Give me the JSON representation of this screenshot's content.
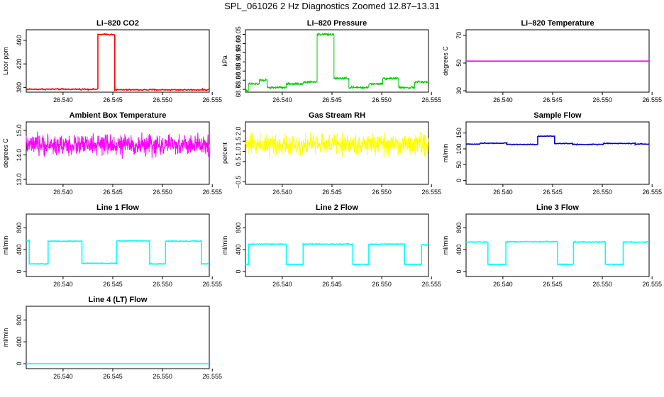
{
  "page": {
    "title": "SPL_061026  2 Hz Diagnostics Zoomed 12.87–13.31"
  },
  "chart_data": [
    {
      "type": "line",
      "title": "Li–820 CO2",
      "xlabel": "",
      "ylabel": "Licor ppm",
      "color": "#ff0000",
      "x_ticks": [
        "26.540",
        "26.545",
        "26.550",
        "26.555"
      ],
      "y_ticks": [
        "380",
        "420",
        "460"
      ],
      "xlim": [
        26.5363,
        26.5547
      ],
      "ylim": [
        372,
        478
      ],
      "noise": 1.0,
      "series": [
        {
          "segments": [
            {
              "x": [
                26.5363,
                26.5435
              ],
              "y": 377
            },
            {
              "x": [
                26.5435,
                26.5452
              ],
              "y": 470
            },
            {
              "x": [
                26.5452,
                26.5547
              ],
              "y": 376
            }
          ]
        }
      ]
    },
    {
      "type": "line",
      "title": "Li–820 Pressure",
      "xlabel": "",
      "ylabel": "kPa",
      "color": "#00cc00",
      "dense": true,
      "x_ticks": [
        "26.540",
        "26.545",
        "26.550",
        "26.555"
      ],
      "y_ticks": [
        "68.75",
        "68.80",
        "68.85",
        "68.90",
        "68.95",
        "69.00",
        "69.05"
      ],
      "xlim": [
        26.5363,
        26.5547
      ],
      "ylim": [
        68.735,
        69.075
      ],
      "noise": 0.004,
      "series": [
        {
          "segments": [
            {
              "x": [
                26.5363,
                26.5366
              ],
              "y": 68.74
            },
            {
              "x": [
                26.5366,
                26.5377
              ],
              "y": 68.78
            },
            {
              "x": [
                26.5377,
                26.5385
              ],
              "y": 68.8
            },
            {
              "x": [
                26.5385,
                26.5404
              ],
              "y": 68.76
            },
            {
              "x": [
                26.5404,
                26.5421
              ],
              "y": 68.78
            },
            {
              "x": [
                26.5421,
                26.5435
              ],
              "y": 68.79
            },
            {
              "x": [
                26.5435,
                26.5452
              ],
              "y": 69.05
            },
            {
              "x": [
                26.5452,
                26.5467
              ],
              "y": 68.81
            },
            {
              "x": [
                26.5467,
                26.5487
              ],
              "y": 68.76
            },
            {
              "x": [
                26.5487,
                26.5501
              ],
              "y": 68.78
            },
            {
              "x": [
                26.5501,
                26.5517
              ],
              "y": 68.81
            },
            {
              "x": [
                26.5517,
                26.5533
              ],
              "y": 68.76
            },
            {
              "x": [
                26.5533,
                26.5547
              ],
              "y": 68.79
            }
          ]
        }
      ]
    },
    {
      "type": "line",
      "title": "Li–820 Temperature",
      "xlabel": "",
      "ylabel": "degrees C",
      "color": "#ff00ff",
      "x_ticks": [
        "26.540",
        "26.545",
        "26.550",
        "26.555"
      ],
      "y_ticks": [
        "30",
        "50",
        "70"
      ],
      "xlim": [
        26.5363,
        26.5547
      ],
      "ylim": [
        29,
        74
      ],
      "noise": 0,
      "series": [
        {
          "segments": [
            {
              "x": [
                26.5363,
                26.5547
              ],
              "y": 51.4
            }
          ]
        }
      ]
    },
    {
      "type": "line",
      "title": "Ambient Box Temperature",
      "xlabel": "",
      "ylabel": "degrees C",
      "color": "#ff00ff",
      "dense": true,
      "x_ticks": [
        "26.540",
        "26.545",
        "26.550",
        "26.555"
      ],
      "y_ticks": [
        "13.0",
        "14.0",
        "15.0"
      ],
      "xlim": [
        26.5363,
        26.5547
      ],
      "ylim": [
        12.8,
        15.35
      ],
      "noise": 0.28,
      "series": [
        {
          "segments": [
            {
              "x": [
                26.5363,
                26.5547
              ],
              "y": 14.4
            }
          ]
        }
      ]
    },
    {
      "type": "line",
      "title": "Gas Stream RH",
      "xlabel": "",
      "ylabel": "percent",
      "color": "#ffff00",
      "dense": true,
      "x_ticks": [
        "26.540",
        "26.545",
        "26.550",
        "26.555"
      ],
      "y_ticks": [
        "−0.5",
        "0.5",
        "1.0",
        "1.5",
        "2.0"
      ],
      "y_tick_values": [
        -0.5,
        0.5,
        1.0,
        1.5,
        2.0
      ],
      "xlim": [
        26.5363,
        26.5547
      ],
      "ylim": [
        -0.62,
        2.45
      ],
      "noise": 0.35,
      "series": [
        {
          "segments": [
            {
              "x": [
                26.5363,
                26.5547
              ],
              "y": 1.35
            }
          ]
        }
      ]
    },
    {
      "type": "line",
      "title": "Sample Flow",
      "xlabel": "",
      "ylabel": "ml/min",
      "color": "#0000cc",
      "x_ticks": [
        "26.540",
        "26.545",
        "26.550",
        "26.555"
      ],
      "y_ticks": [
        "0",
        "50",
        "100",
        "150"
      ],
      "xlim": [
        26.5363,
        26.5547
      ],
      "ylim": [
        -12,
        185
      ],
      "noise": 1.2,
      "series": [
        {
          "segments": [
            {
              "x": [
                26.5363,
                26.5377
              ],
              "y": 115
            },
            {
              "x": [
                26.5377,
                26.5404
              ],
              "y": 118
            },
            {
              "x": [
                26.5404,
                26.5435
              ],
              "y": 114
            },
            {
              "x": [
                26.5435,
                26.5452
              ],
              "y": 140
            },
            {
              "x": [
                26.5452,
                26.547
              ],
              "y": 117
            },
            {
              "x": [
                26.547,
                26.5501
              ],
              "y": 114
            },
            {
              "x": [
                26.5501,
                26.5533
              ],
              "y": 117
            },
            {
              "x": [
                26.5533,
                26.5547
              ],
              "y": 115
            }
          ]
        }
      ]
    },
    {
      "type": "line",
      "title": "Line 1 Flow",
      "xlabel": "",
      "ylabel": "ml/min",
      "color": "#00ffff",
      "x_ticks": [
        "26.540",
        "26.545",
        "26.550",
        "26.555"
      ],
      "y_ticks": [
        "0",
        "400",
        "800"
      ],
      "xlim": [
        26.5363,
        26.5547
      ],
      "ylim": [
        -90,
        1050
      ],
      "noise": 8,
      "series": [
        {
          "segments": [
            {
              "x": [
                26.5363,
                26.5366
              ],
              "y": 560
            },
            {
              "x": [
                26.5366,
                26.5385
              ],
              "y": 140
            },
            {
              "x": [
                26.5385,
                26.5419
              ],
              "y": 555
            },
            {
              "x": [
                26.5419,
                26.5454
              ],
              "y": 150
            },
            {
              "x": [
                26.5454,
                26.5487
              ],
              "y": 560
            },
            {
              "x": [
                26.5487,
                26.5503
              ],
              "y": 140
            },
            {
              "x": [
                26.5503,
                26.5539
              ],
              "y": 555
            },
            {
              "x": [
                26.5539,
                26.5547
              ],
              "y": 140
            }
          ]
        }
      ]
    },
    {
      "type": "line",
      "title": "Line 2 Flow",
      "xlabel": "",
      "ylabel": "ml/min",
      "color": "#00ffff",
      "x_ticks": [
        "26.540",
        "26.545",
        "26.550",
        "26.555"
      ],
      "y_ticks": [
        "0",
        "400",
        "800"
      ],
      "xlim": [
        26.5363,
        26.5547
      ],
      "ylim": [
        -90,
        1050
      ],
      "noise": 8,
      "series": [
        {
          "segments": [
            {
              "x": [
                26.5363,
                26.5366
              ],
              "y": 130
            },
            {
              "x": [
                26.5366,
                26.5404
              ],
              "y": 500
            },
            {
              "x": [
                26.5404,
                26.5421
              ],
              "y": 130
            },
            {
              "x": [
                26.5421,
                26.5471
              ],
              "y": 500
            },
            {
              "x": [
                26.5471,
                26.5487
              ],
              "y": 130
            },
            {
              "x": [
                26.5487,
                26.5523
              ],
              "y": 500
            },
            {
              "x": [
                26.5523,
                26.554
              ],
              "y": 130
            },
            {
              "x": [
                26.554,
                26.5547
              ],
              "y": 490
            }
          ]
        }
      ]
    },
    {
      "type": "line",
      "title": "Line 3 Flow",
      "xlabel": "",
      "ylabel": "ml/min",
      "color": "#00ffff",
      "x_ticks": [
        "26.540",
        "26.545",
        "26.550",
        "26.555"
      ],
      "y_ticks": [
        "0",
        "400",
        "800"
      ],
      "xlim": [
        26.5363,
        26.5547
      ],
      "ylim": [
        -90,
        1050
      ],
      "noise": 8,
      "series": [
        {
          "segments": [
            {
              "x": [
                26.5363,
                26.5385
              ],
              "y": 540
            },
            {
              "x": [
                26.5385,
                26.5403
              ],
              "y": 130
            },
            {
              "x": [
                26.5403,
                26.5455
              ],
              "y": 545
            },
            {
              "x": [
                26.5455,
                26.5471
              ],
              "y": 130
            },
            {
              "x": [
                26.5471,
                26.5503
              ],
              "y": 540
            },
            {
              "x": [
                26.5503,
                26.5521
              ],
              "y": 130
            },
            {
              "x": [
                26.5521,
                26.5547
              ],
              "y": 540
            }
          ]
        }
      ]
    },
    {
      "type": "line",
      "title": "Line 4 (LT) Flow",
      "xlabel": "",
      "ylabel": "ml/min",
      "color": "#00ffff",
      "x_ticks": [
        "26.540",
        "26.545",
        "26.550",
        "26.555"
      ],
      "y_ticks": [
        "0",
        "400",
        "800"
      ],
      "xlim": [
        26.5363,
        26.5547
      ],
      "ylim": [
        -90,
        1050
      ],
      "noise": 0,
      "series": [
        {
          "segments": [
            {
              "x": [
                26.5363,
                26.5547
              ],
              "y": 0
            }
          ]
        }
      ]
    }
  ]
}
